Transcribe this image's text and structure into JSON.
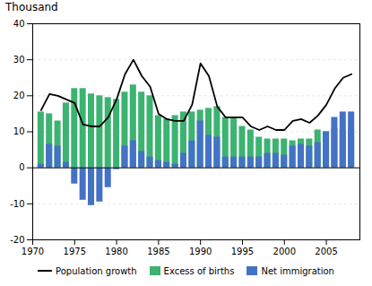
{
  "chart_data": {
    "type": "bar",
    "title": "Thousand",
    "x": [
      1971,
      1972,
      1973,
      1974,
      1975,
      1976,
      1977,
      1978,
      1979,
      1980,
      1981,
      1982,
      1983,
      1984,
      1985,
      1986,
      1987,
      1988,
      1989,
      1990,
      1991,
      1992,
      1993,
      1994,
      1995,
      1996,
      1997,
      1998,
      1999,
      2000,
      2001,
      2002,
      2003,
      2004,
      2005,
      2006,
      2007,
      2008
    ],
    "series": [
      {
        "name": "Population growth",
        "type": "line",
        "color": "#000000",
        "values": [
          16.0,
          20.5,
          20.0,
          19.0,
          18.0,
          12.0,
          11.5,
          11.5,
          14.0,
          19.0,
          26.0,
          30.0,
          25.5,
          22.5,
          15.0,
          13.5,
          13.0,
          13.0,
          17.5,
          29.0,
          25.5,
          17.0,
          14.0,
          14.0,
          14.0,
          11.5,
          10.5,
          11.5,
          10.5,
          10.5,
          13.0,
          13.5,
          12.5,
          14.5,
          17.5,
          22.0,
          25.0,
          26.0
        ]
      },
      {
        "name": "Excess of births",
        "type": "bar",
        "color": "#3CB371",
        "values": [
          15.5,
          15.0,
          13.0,
          18.0,
          22.0,
          22.0,
          20.5,
          20.0,
          19.5,
          19.0,
          21.0,
          23.0,
          21.0,
          20.0,
          14.5,
          13.5,
          14.5,
          15.5,
          15.5,
          16.0,
          16.5,
          17.0,
          14.0,
          14.0,
          11.5,
          10.5,
          8.5,
          8.0,
          8.0,
          8.0,
          7.5,
          8.0,
          8.0,
          10.5,
          10.0,
          11.0,
          10.5,
          11.0
        ]
      },
      {
        "name": "Net immigration",
        "type": "bar",
        "color": "#4472C4",
        "values": [
          1.0,
          6.5,
          6.0,
          1.5,
          -4.5,
          -9.0,
          -10.5,
          -9.5,
          -5.5,
          -0.5,
          6.0,
          7.5,
          4.5,
          3.0,
          2.0,
          1.5,
          1.0,
          4.0,
          7.5,
          13.0,
          9.0,
          8.5,
          3.0,
          3.0,
          3.0,
          3.0,
          3.0,
          4.0,
          4.0,
          3.5,
          6.0,
          6.5,
          6.0,
          7.0,
          10.0,
          14.0,
          15.5,
          15.5
        ]
      }
    ],
    "xlim": [
      1970,
      2009
    ],
    "xticks": [
      1970,
      1975,
      1980,
      1985,
      1990,
      1995,
      2000,
      2005
    ],
    "ylim": [
      -20,
      40
    ],
    "yticks": [
      -20,
      -10,
      0,
      10,
      20,
      30,
      40
    ],
    "grid": true,
    "legend": "bottom"
  }
}
